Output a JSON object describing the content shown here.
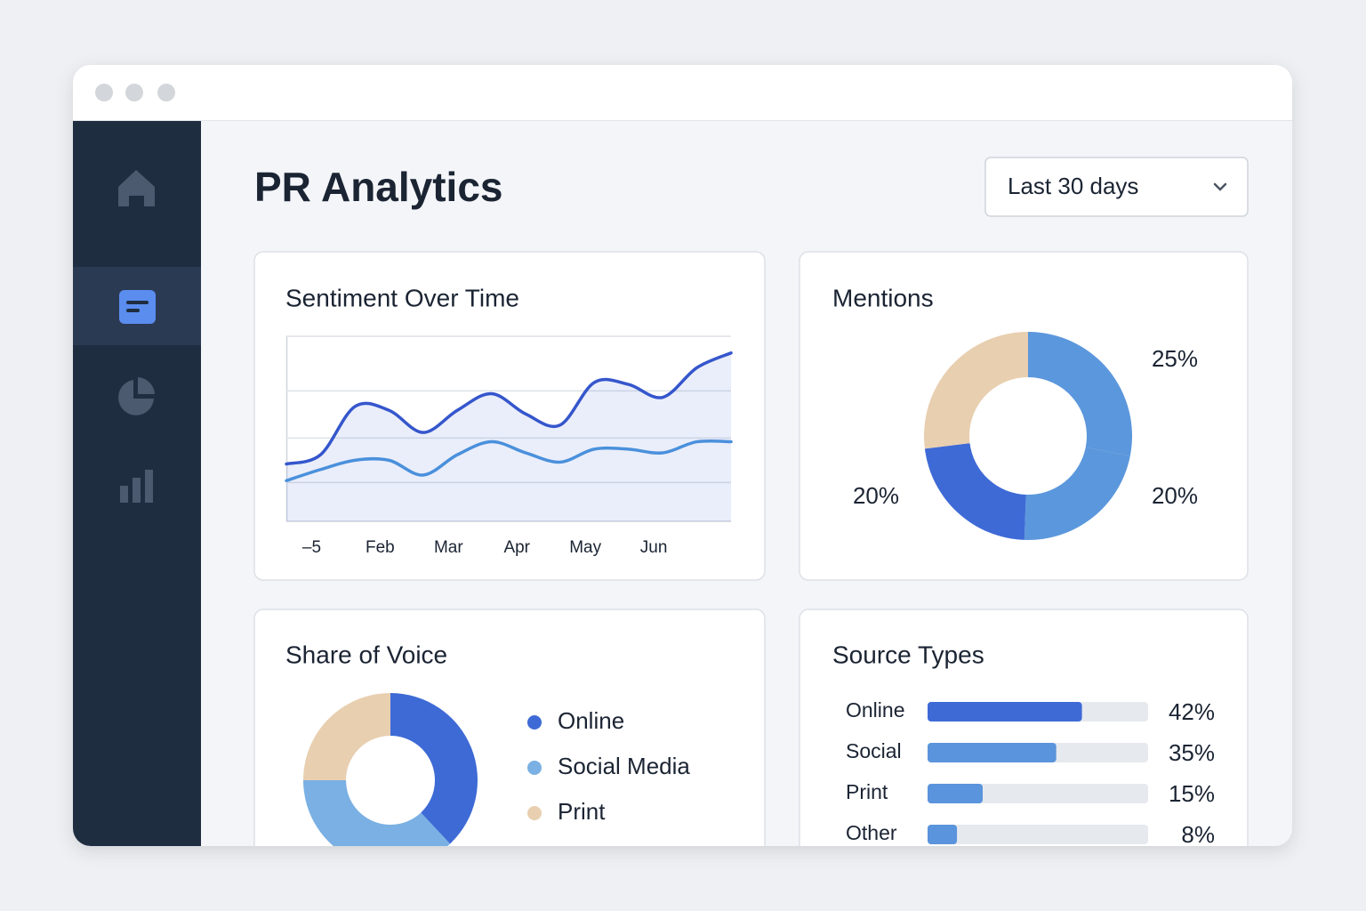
{
  "header": {
    "title": "PR Analytics",
    "dropdown": "Last 30 days"
  },
  "chart_data": [
    {
      "type": "line",
      "title": "Sentiment Over Time",
      "categories": [
        null,
        "–5",
        null,
        "Feb",
        null,
        "Mar",
        null,
        "Apr",
        null,
        "May",
        null,
        "Jun",
        null,
        null
      ],
      "series": [
        {
          "color": "#3556cc",
          "values": [
            31,
            36,
            62,
            60,
            48,
            60,
            69,
            58,
            52,
            75,
            74,
            67,
            83,
            91
          ]
        },
        {
          "color": "#4a90dc",
          "values": [
            22,
            28,
            33,
            33,
            25,
            36,
            43,
            37,
            32,
            39,
            39,
            37,
            43,
            43
          ]
        }
      ],
      "ylim": [
        0,
        100
      ],
      "grid": true,
      "area": true
    },
    {
      "type": "donut",
      "title": "Mentions",
      "categories": [
        null,
        null,
        null,
        null
      ],
      "values": [
        25,
        20,
        20,
        24
      ],
      "value_labels": [
        "25%",
        "20%",
        "20%",
        null
      ],
      "colors": [
        "#5b97dc",
        "#5b97dc",
        "#3e6ad6",
        "#e8cfb0"
      ]
    },
    {
      "type": "donut",
      "title": "Share of Voice",
      "categories": [
        "Online",
        "Social Media",
        "Print"
      ],
      "values": [
        38,
        37,
        25
      ],
      "colors": [
        "#3e6ad6",
        "#7ab0e3",
        "#e8cfb0"
      ],
      "legend": "right"
    },
    {
      "type": "bar",
      "orientation": "horizontal",
      "title": "Source Types",
      "categories": [
        "Online",
        "Social",
        "Print",
        "Other"
      ],
      "values": [
        42,
        35,
        15,
        8
      ],
      "value_labels": [
        "42%",
        "35%",
        "15%",
        "8%"
      ],
      "colors": [
        "#3e6ad6",
        "#5a94dc",
        "#5a94dc",
        "#5a94dc"
      ],
      "xlim": [
        0,
        60
      ]
    }
  ]
}
